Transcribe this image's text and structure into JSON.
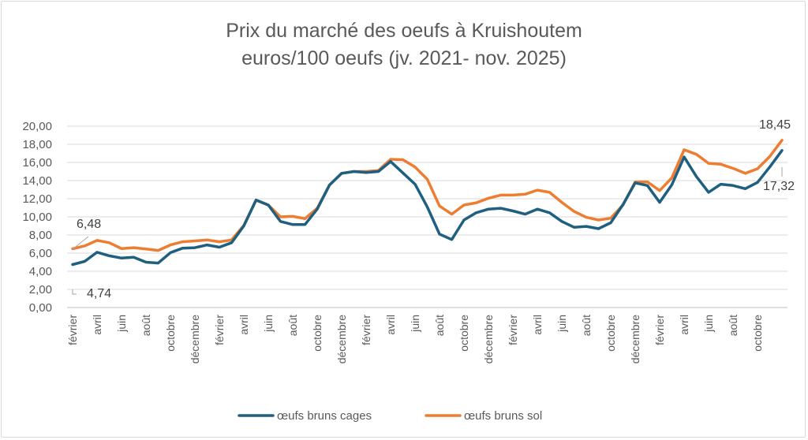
{
  "chart_data": {
    "type": "line",
    "title": "Prix du marché des oeufs à Kruishoutem",
    "subtitle": "euros/100 oeufs (jv. 2021- nov. 2025)",
    "xlabel": "",
    "ylabel": "",
    "ylim": [
      0,
      20
    ],
    "yticks": [
      "0,00",
      "2,00",
      "4,00",
      "6,00",
      "8,00",
      "10,00",
      "12,00",
      "14,00",
      "16,00",
      "18,00",
      "20,00"
    ],
    "xticks": [
      {
        "index": 0,
        "label": "février"
      },
      {
        "index": 2,
        "label": "avril"
      },
      {
        "index": 4,
        "label": "juin"
      },
      {
        "index": 6,
        "label": "août"
      },
      {
        "index": 8,
        "label": "octobre"
      },
      {
        "index": 10,
        "label": "décembre"
      },
      {
        "index": 12,
        "label": "février"
      },
      {
        "index": 14,
        "label": "avril"
      },
      {
        "index": 16,
        "label": "juin"
      },
      {
        "index": 18,
        "label": "août"
      },
      {
        "index": 20,
        "label": "octobre"
      },
      {
        "index": 22,
        "label": "décembre"
      },
      {
        "index": 24,
        "label": "février"
      },
      {
        "index": 26,
        "label": "avril"
      },
      {
        "index": 28,
        "label": "juin"
      },
      {
        "index": 30,
        "label": "août"
      },
      {
        "index": 32,
        "label": "octobre"
      },
      {
        "index": 34,
        "label": "décembre"
      },
      {
        "index": 36,
        "label": "février"
      },
      {
        "index": 38,
        "label": "avril"
      },
      {
        "index": 40,
        "label": "juin"
      },
      {
        "index": 42,
        "label": "août"
      },
      {
        "index": 44,
        "label": "octobre"
      },
      {
        "index": 46,
        "label": "décembre"
      },
      {
        "index": 48,
        "label": "février"
      },
      {
        "index": 50,
        "label": "avril"
      },
      {
        "index": 52,
        "label": "juin"
      },
      {
        "index": 54,
        "label": "août"
      },
      {
        "index": 56,
        "label": "octobre"
      }
    ],
    "grid": true,
    "legend_position": "bottom",
    "series": [
      {
        "name": "œufs bruns cages",
        "color": "#1f5f7f",
        "values": [
          4.74,
          5.1,
          6.1,
          5.7,
          5.45,
          5.55,
          5.0,
          4.9,
          6.05,
          6.55,
          6.6,
          6.9,
          6.65,
          7.15,
          9.0,
          11.85,
          11.3,
          9.5,
          9.15,
          9.15,
          10.85,
          13.5,
          14.8,
          15.0,
          14.9,
          15.0,
          16.1,
          14.85,
          13.6,
          11.1,
          8.1,
          7.5,
          9.65,
          10.45,
          10.85,
          10.95,
          10.65,
          10.3,
          10.85,
          10.45,
          9.5,
          8.85,
          8.95,
          8.7,
          9.35,
          11.35,
          13.75,
          13.45,
          11.6,
          13.55,
          16.6,
          14.45,
          12.7,
          13.6,
          13.45,
          13.1,
          13.8,
          15.5,
          17.32
        ],
        "labels": [
          {
            "index": 0,
            "text": "4,74"
          },
          {
            "index": 58,
            "text": "17,32"
          }
        ]
      },
      {
        "name": "œufs bruns sol",
        "color": "#ed7d31",
        "values": [
          6.48,
          6.8,
          7.4,
          7.15,
          6.5,
          6.6,
          6.45,
          6.3,
          6.9,
          7.25,
          7.35,
          7.45,
          7.25,
          7.45,
          9.05,
          11.85,
          11.3,
          10.0,
          10.05,
          9.8,
          10.95,
          13.5,
          14.8,
          15.0,
          15.0,
          15.1,
          16.35,
          16.3,
          15.5,
          14.15,
          11.2,
          10.3,
          11.3,
          11.55,
          12.05,
          12.4,
          12.4,
          12.5,
          12.95,
          12.7,
          11.6,
          10.6,
          9.95,
          9.65,
          9.85,
          11.3,
          13.85,
          13.85,
          12.9,
          14.3,
          17.4,
          16.9,
          15.9,
          15.8,
          15.35,
          14.8,
          15.3,
          16.65,
          18.45
        ],
        "labels": [
          {
            "index": 0,
            "text": "6,48"
          },
          {
            "index": 58,
            "text": "18,45"
          }
        ]
      }
    ]
  }
}
